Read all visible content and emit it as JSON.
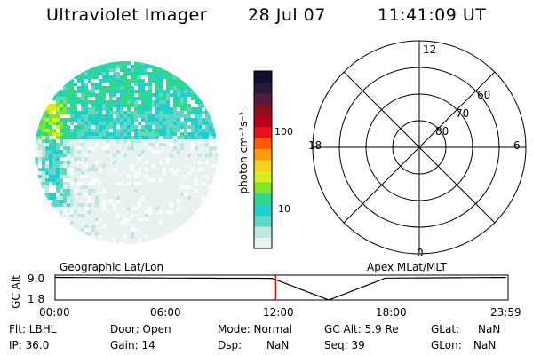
{
  "header": {
    "title": "Ultraviolet Imager",
    "date": "28 Jul 07",
    "time": "11:41:09 UT"
  },
  "colorbar": {
    "label": "photon cm⁻²s⁻¹",
    "tick_labels": [
      "100",
      "10"
    ],
    "ticks": [
      100,
      10
    ],
    "scale": "log",
    "colors": [
      "#e8f2f0",
      "#bfe6e0",
      "#5fd7c4",
      "#1fcfd0",
      "#2fd88a",
      "#7ee52a",
      "#d6ee1a",
      "#f5d21a",
      "#ff9a0a",
      "#ff5a0a",
      "#e8121a",
      "#b8001a",
      "#8a1020",
      "#5a1a40",
      "#2a1a3a",
      "#101030"
    ]
  },
  "polar_plot": {
    "mlt_labels": [
      "12",
      "18",
      "6",
      "0"
    ],
    "lat_labels": [
      "60",
      "70",
      "80"
    ]
  },
  "timeline": {
    "left_label": "Geographic Lat/Lon",
    "right_label": "Apex  MLat/MLT",
    "axis_title": "GC Alt",
    "y_labels": [
      "9.0",
      "1.8"
    ],
    "x_labels": [
      "00:00",
      "06:00",
      "12:00",
      "18:00",
      "23:59"
    ],
    "current_time_hours": 11.69,
    "line_color": "#000000",
    "marker_color": "#e01010"
  },
  "status": {
    "row1": [
      {
        "label": "Flt: LBHL"
      },
      {
        "label": "Door: Open"
      },
      {
        "label": "Mode: Normal"
      },
      {
        "label": "GC Alt: 5.9 Re"
      },
      {
        "label": "GLat:",
        "value": "NaN"
      }
    ],
    "row2": [
      {
        "label": "IP: 36.0"
      },
      {
        "label": "Gain: 14"
      },
      {
        "label": "Dsp:",
        "value": "NaN"
      },
      {
        "label": "Seq: 39"
      },
      {
        "label": "GLon:",
        "value": "NaN"
      }
    ]
  }
}
